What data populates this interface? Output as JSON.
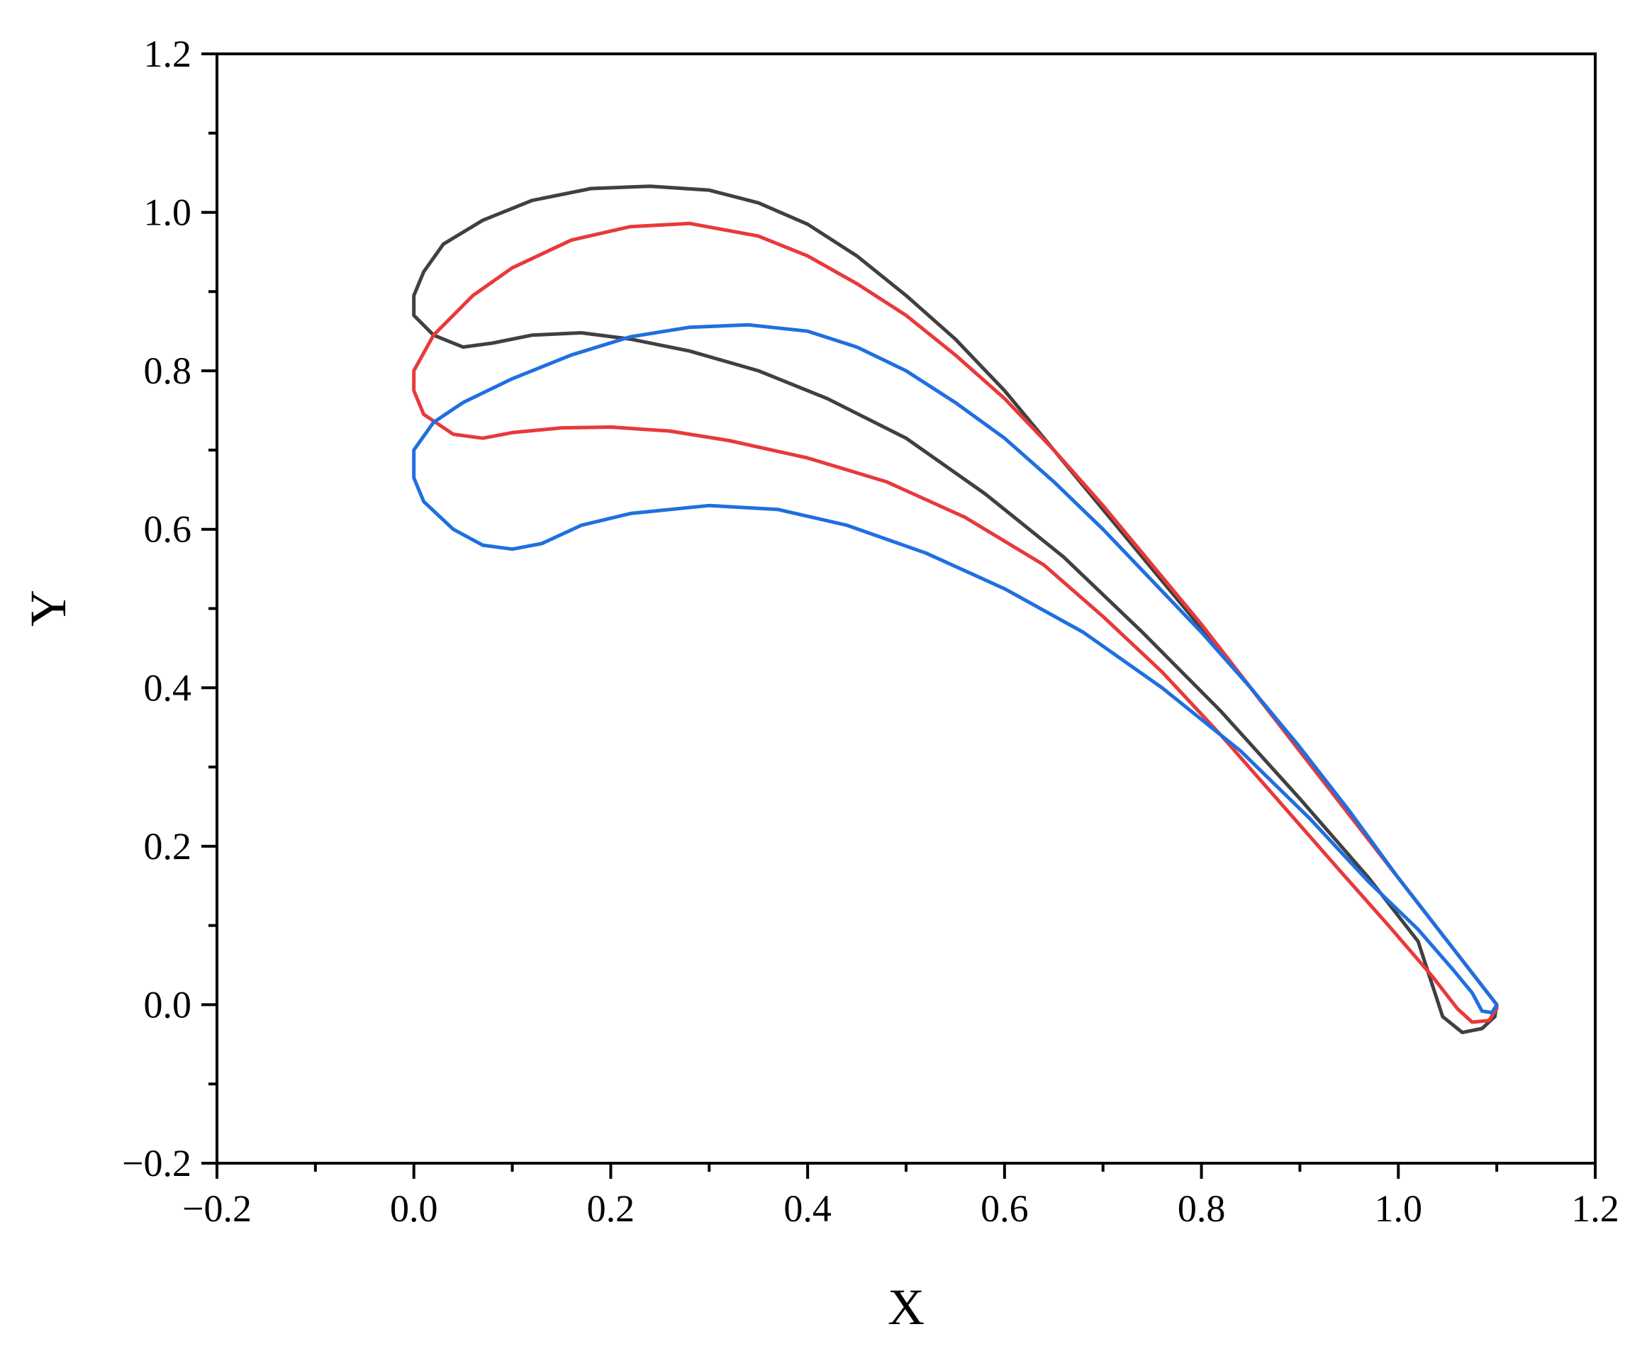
{
  "chart_data": {
    "type": "line",
    "title": "",
    "xlabel": "X",
    "ylabel": "Y",
    "xlim": [
      -0.2,
      1.2
    ],
    "ylim": [
      -0.2,
      1.2
    ],
    "x_major_ticks": [
      -0.2,
      0.0,
      0.2,
      0.4,
      0.6,
      0.8,
      1.0,
      1.2
    ],
    "y_major_ticks": [
      -0.2,
      0.0,
      0.2,
      0.4,
      0.6,
      0.8,
      1.0,
      1.2
    ],
    "x_tick_labels": [
      "−0.2",
      "0.0",
      "0.2",
      "0.4",
      "0.6",
      "0.8",
      "1.0",
      "1.2"
    ],
    "y_tick_labels": [
      "−0.2",
      "0.0",
      "0.2",
      "0.4",
      "0.6",
      "0.8",
      "1.0",
      "1.2"
    ],
    "minor_ticks": true,
    "grid": false,
    "legend": "none",
    "series": [
      {
        "color": "#404040",
        "closed": true,
        "points": [
          [
            1.1,
            0.0
          ],
          [
            1.05,
            0.08
          ],
          [
            1.0,
            0.16
          ],
          [
            0.95,
            0.24
          ],
          [
            0.9,
            0.32
          ],
          [
            0.85,
            0.4
          ],
          [
            0.8,
            0.475
          ],
          [
            0.75,
            0.55
          ],
          [
            0.7,
            0.625
          ],
          [
            0.65,
            0.7
          ],
          [
            0.6,
            0.775
          ],
          [
            0.55,
            0.84
          ],
          [
            0.5,
            0.895
          ],
          [
            0.45,
            0.945
          ],
          [
            0.4,
            0.985
          ],
          [
            0.35,
            1.012
          ],
          [
            0.3,
            1.028
          ],
          [
            0.24,
            1.033
          ],
          [
            0.18,
            1.03
          ],
          [
            0.12,
            1.015
          ],
          [
            0.07,
            0.99
          ],
          [
            0.03,
            0.96
          ],
          [
            0.01,
            0.925
          ],
          [
            0.0,
            0.895
          ],
          [
            0.0,
            0.87
          ],
          [
            0.02,
            0.845
          ],
          [
            0.05,
            0.83
          ],
          [
            0.08,
            0.835
          ],
          [
            0.12,
            0.845
          ],
          [
            0.17,
            0.848
          ],
          [
            0.22,
            0.84
          ],
          [
            0.28,
            0.825
          ],
          [
            0.35,
            0.8
          ],
          [
            0.42,
            0.765
          ],
          [
            0.5,
            0.715
          ],
          [
            0.58,
            0.645
          ],
          [
            0.66,
            0.565
          ],
          [
            0.74,
            0.47
          ],
          [
            0.82,
            0.37
          ],
          [
            0.9,
            0.26
          ],
          [
            0.97,
            0.16
          ],
          [
            1.02,
            0.08
          ],
          [
            1.045,
            -0.015
          ],
          [
            1.065,
            -0.035
          ],
          [
            1.085,
            -0.03
          ],
          [
            1.098,
            -0.015
          ],
          [
            1.1,
            0.0
          ]
        ]
      },
      {
        "color": "#e8393b",
        "closed": true,
        "points": [
          [
            1.1,
            0.0
          ],
          [
            1.05,
            0.08
          ],
          [
            1.0,
            0.16
          ],
          [
            0.95,
            0.24
          ],
          [
            0.9,
            0.32
          ],
          [
            0.85,
            0.4
          ],
          [
            0.8,
            0.48
          ],
          [
            0.75,
            0.555
          ],
          [
            0.7,
            0.63
          ],
          [
            0.65,
            0.7
          ],
          [
            0.6,
            0.765
          ],
          [
            0.55,
            0.82
          ],
          [
            0.5,
            0.87
          ],
          [
            0.45,
            0.91
          ],
          [
            0.4,
            0.945
          ],
          [
            0.35,
            0.97
          ],
          [
            0.28,
            0.986
          ],
          [
            0.22,
            0.982
          ],
          [
            0.16,
            0.965
          ],
          [
            0.1,
            0.93
          ],
          [
            0.06,
            0.895
          ],
          [
            0.02,
            0.845
          ],
          [
            0.0,
            0.8
          ],
          [
            0.0,
            0.775
          ],
          [
            0.01,
            0.745
          ],
          [
            0.04,
            0.72
          ],
          [
            0.07,
            0.715
          ],
          [
            0.1,
            0.722
          ],
          [
            0.15,
            0.728
          ],
          [
            0.2,
            0.729
          ],
          [
            0.26,
            0.724
          ],
          [
            0.32,
            0.712
          ],
          [
            0.4,
            0.69
          ],
          [
            0.48,
            0.66
          ],
          [
            0.56,
            0.615
          ],
          [
            0.64,
            0.555
          ],
          [
            0.7,
            0.49
          ],
          [
            0.76,
            0.42
          ],
          [
            0.82,
            0.34
          ],
          [
            0.88,
            0.255
          ],
          [
            0.94,
            0.17
          ],
          [
            0.99,
            0.1
          ],
          [
            1.035,
            0.035
          ],
          [
            1.06,
            -0.005
          ],
          [
            1.075,
            -0.022
          ],
          [
            1.092,
            -0.02
          ],
          [
            1.1,
            -0.005
          ],
          [
            1.1,
            0.0
          ]
        ]
      },
      {
        "color": "#1f6fe0",
        "closed": true,
        "points": [
          [
            1.1,
            0.0
          ],
          [
            1.05,
            0.08
          ],
          [
            1.0,
            0.16
          ],
          [
            0.95,
            0.245
          ],
          [
            0.9,
            0.325
          ],
          [
            0.85,
            0.4
          ],
          [
            0.8,
            0.47
          ],
          [
            0.75,
            0.535
          ],
          [
            0.7,
            0.6
          ],
          [
            0.65,
            0.66
          ],
          [
            0.6,
            0.715
          ],
          [
            0.55,
            0.76
          ],
          [
            0.5,
            0.8
          ],
          [
            0.45,
            0.83
          ],
          [
            0.4,
            0.85
          ],
          [
            0.34,
            0.858
          ],
          [
            0.28,
            0.855
          ],
          [
            0.22,
            0.843
          ],
          [
            0.16,
            0.82
          ],
          [
            0.1,
            0.79
          ],
          [
            0.05,
            0.76
          ],
          [
            0.02,
            0.735
          ],
          [
            0.0,
            0.7
          ],
          [
            0.0,
            0.665
          ],
          [
            0.01,
            0.635
          ],
          [
            0.04,
            0.6
          ],
          [
            0.07,
            0.58
          ],
          [
            0.1,
            0.575
          ],
          [
            0.13,
            0.582
          ],
          [
            0.17,
            0.605
          ],
          [
            0.22,
            0.62
          ],
          [
            0.3,
            0.63
          ],
          [
            0.37,
            0.625
          ],
          [
            0.44,
            0.605
          ],
          [
            0.52,
            0.57
          ],
          [
            0.6,
            0.525
          ],
          [
            0.68,
            0.47
          ],
          [
            0.76,
            0.4
          ],
          [
            0.84,
            0.32
          ],
          [
            0.91,
            0.235
          ],
          [
            0.97,
            0.155
          ],
          [
            1.02,
            0.095
          ],
          [
            1.055,
            0.045
          ],
          [
            1.075,
            0.015
          ],
          [
            1.085,
            -0.008
          ],
          [
            1.095,
            -0.01
          ],
          [
            1.1,
            0.0
          ]
        ]
      }
    ]
  }
}
